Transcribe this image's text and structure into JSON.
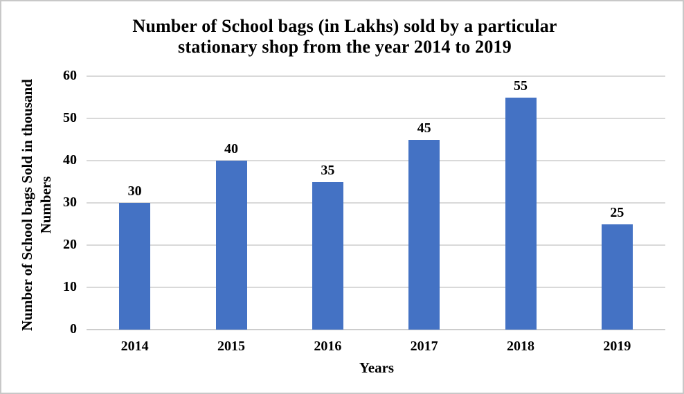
{
  "frame": {
    "background": "#FFFFFF",
    "border_color": "#C8C8C8"
  },
  "chart_data": {
    "type": "bar",
    "title": "Number of School bags (in Lakhs) sold by a particular stationary shop from the year 2014 to 2019",
    "title_lines": [
      "Number of School bags (in Lakhs) sold by a particular",
      "stationary shop from the year 2014 to 2019"
    ],
    "xlabel": "Years",
    "ylabel": "Number of School bags Sold in thousand Numbers",
    "ylabel_lines": [
      "Number of School bags Sold in thousand",
      "Numbers"
    ],
    "categories": [
      "2014",
      "2015",
      "2016",
      "2017",
      "2018",
      "2019"
    ],
    "values": [
      30,
      40,
      35,
      45,
      55,
      25
    ],
    "yticks": [
      0,
      10,
      20,
      30,
      40,
      50,
      60
    ],
    "ylim": [
      0,
      60
    ],
    "grid": true,
    "legend": "none",
    "show_data_labels": true,
    "colors": {
      "bar": "#4472C4",
      "gridline": "#D9D9D9",
      "axis_line": "#CDCDCD",
      "text": "#000000"
    }
  }
}
